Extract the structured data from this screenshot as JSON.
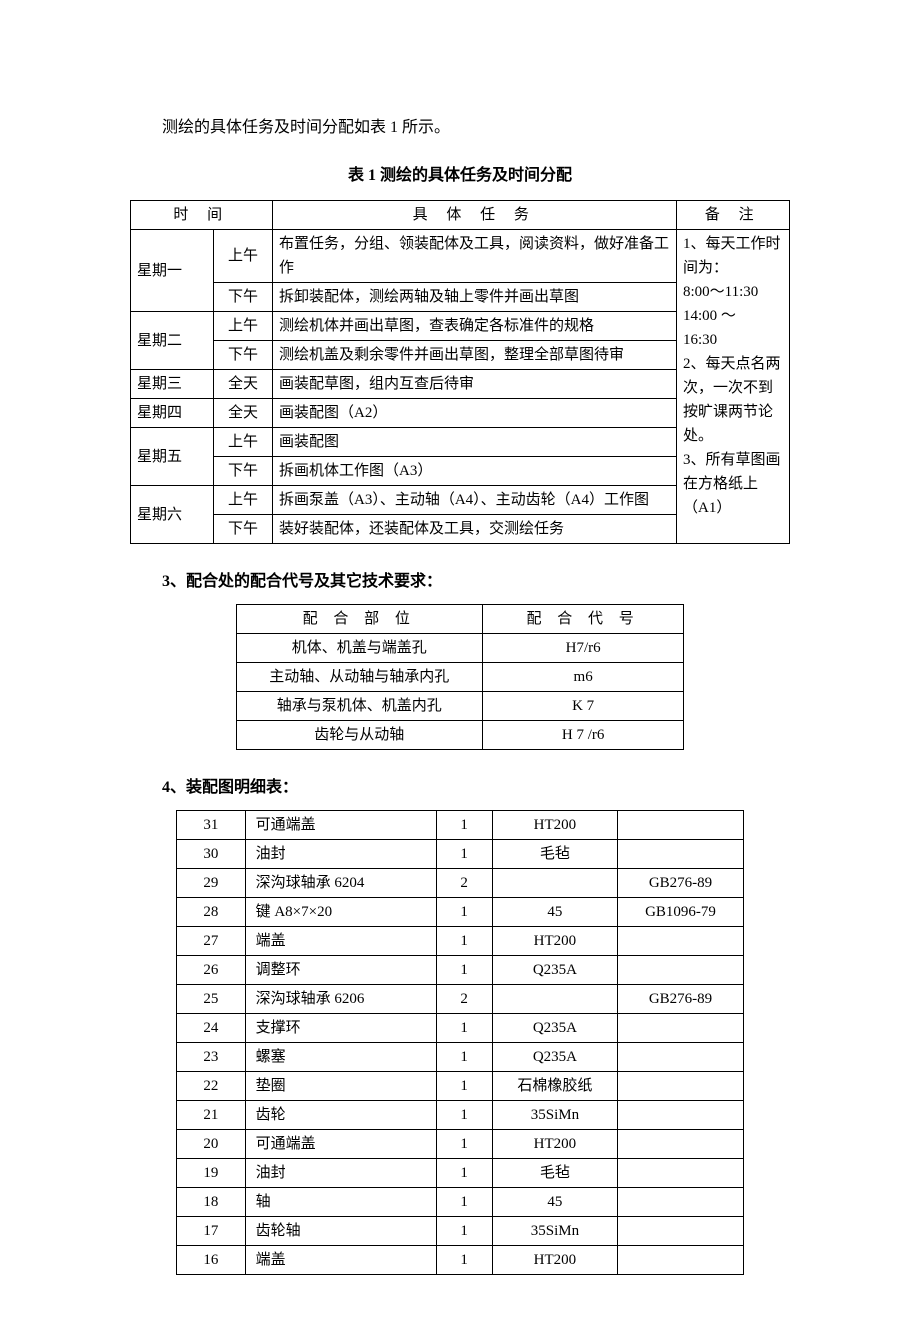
{
  "intro": "测绘的具体任务及时间分配如表 1 所示。",
  "table1": {
    "caption": "表 1   测绘的具体任务及时间分配",
    "headers": {
      "time": "时 间",
      "task": "具 体 任 务",
      "note": "备 注"
    },
    "rows": [
      {
        "day": "星期一",
        "periods": [
          {
            "p": "上午",
            "task": "布置任务，分组、领装配体及工具，阅读资料，做好准备工作"
          },
          {
            "p": "下午",
            "task": "拆卸装配体，测绘两轴及轴上零件并画出草图"
          }
        ]
      },
      {
        "day": "星期二",
        "periods": [
          {
            "p": "上午",
            "task": "测绘机体并画出草图，查表确定各标准件的规格"
          },
          {
            "p": "下午",
            "task": "测绘机盖及剩余零件并画出草图，整理全部草图待审"
          }
        ]
      },
      {
        "day": "星期三",
        "periods": [
          {
            "p": "全天",
            "task": "画装配草图，组内互查后待审"
          }
        ]
      },
      {
        "day": "星期四",
        "periods": [
          {
            "p": "全天",
            "task": "画装配图（A2）"
          }
        ]
      },
      {
        "day": "星期五",
        "periods": [
          {
            "p": "上午",
            "task": "画装配图"
          },
          {
            "p": "下午",
            "task": "拆画机体工作图（A3）"
          }
        ]
      },
      {
        "day": "星期六",
        "periods": [
          {
            "p": "上午",
            "task": "拆画泵盖（A3）、主动轴（A4）、主动齿轮（A4）工作图"
          },
          {
            "p": "下午",
            "task": "装好装配体，还装配体及工具，交测绘任务"
          }
        ]
      }
    ],
    "notes": [
      "1、每天工作时间为：",
      "8:00～11:30",
      "14:00    ～",
      "16:30",
      "2、每天点名两次，一次不到按旷课两节论处。",
      "3、所有草图画在方格纸上（A1）"
    ]
  },
  "section3": {
    "heading": "3、配合处的配合代号及其它技术要求：",
    "headers": {
      "part": "配 合 部 位",
      "code": "配 合 代 号"
    },
    "rows": [
      {
        "part": "机体、机盖与端盖孔",
        "code": "H7/r6"
      },
      {
        "part": "主动轴、从动轴与轴承内孔",
        "code": "m6"
      },
      {
        "part": "轴承与泵机体、机盖内孔",
        "code": "K 7"
      },
      {
        "part": "齿轮与从动轴",
        "code": "H 7 /r6"
      }
    ]
  },
  "section4": {
    "heading": "4、装配图明细表：",
    "rows": [
      {
        "n": "31",
        "name": "可通端盖",
        "qty": "1",
        "mat": "HT200",
        "std": ""
      },
      {
        "n": "30",
        "name": "油封",
        "qty": "1",
        "mat": "毛毡",
        "std": ""
      },
      {
        "n": "29",
        "name": "深沟球轴承 6204",
        "qty": "2",
        "mat": "",
        "std": "GB276-89"
      },
      {
        "n": "28",
        "name": "键 A8×7×20",
        "qty": "1",
        "mat": "45",
        "std": "GB1096-79"
      },
      {
        "n": "27",
        "name": "端盖",
        "qty": "1",
        "mat": "HT200",
        "std": ""
      },
      {
        "n": "26",
        "name": "调整环",
        "qty": "1",
        "mat": "Q235A",
        "std": ""
      },
      {
        "n": "25",
        "name": "深沟球轴承 6206",
        "qty": "2",
        "mat": "",
        "std": "GB276-89"
      },
      {
        "n": "24",
        "name": "支撑环",
        "qty": "1",
        "mat": "Q235A",
        "std": ""
      },
      {
        "n": "23",
        "name": "螺塞",
        "qty": "1",
        "mat": "Q235A",
        "std": ""
      },
      {
        "n": "22",
        "name": "垫圈",
        "qty": "1",
        "mat": "石棉橡胶纸",
        "std": ""
      },
      {
        "n": "21",
        "name": "齿轮",
        "qty": "1",
        "mat": "35SiMn",
        "std": ""
      },
      {
        "n": "20",
        "name": "可通端盖",
        "qty": "1",
        "mat": "HT200",
        "std": ""
      },
      {
        "n": "19",
        "name": "油封",
        "qty": "1",
        "mat": "毛毡",
        "std": ""
      },
      {
        "n": "18",
        "name": "轴",
        "qty": "1",
        "mat": "45",
        "std": ""
      },
      {
        "n": "17",
        "name": "齿轮轴",
        "qty": "1",
        "mat": "35SiMn",
        "std": ""
      },
      {
        "n": "16",
        "name": "端盖",
        "qty": "1",
        "mat": "HT200",
        "std": ""
      }
    ]
  }
}
